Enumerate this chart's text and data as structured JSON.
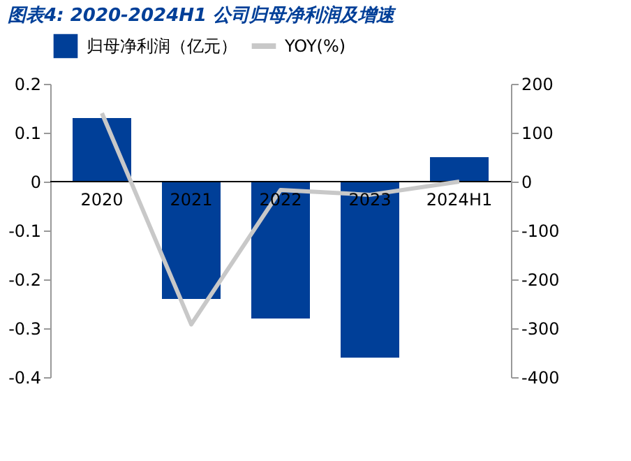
{
  "chart_data": {
    "type": "bar",
    "title": "图表4:  2020-2024H1 公司归母净利润及增速",
    "categories": [
      "2020",
      "2021",
      "2022",
      "2023",
      "2024H1"
    ],
    "series": [
      {
        "name": "归母净利润（亿元）",
        "color": "#003f98",
        "values": [
          0.13,
          -0.24,
          -0.28,
          -0.36,
          0.05
        ]
      },
      {
        "name": "YOY(%)",
        "type": "line",
        "axis": "y2",
        "color": "#c8c8c8",
        "values": [
          140,
          -292,
          -17,
          -27,
          0
        ]
      }
    ],
    "ylim": [
      -0.4,
      0.2
    ],
    "yticks": [
      -0.4,
      -0.3,
      -0.2,
      -0.1,
      0,
      0.1,
      0.2
    ],
    "y2lim": [
      -400,
      200
    ],
    "y2ticks": [
      -400,
      -300,
      -200,
      -100,
      0,
      100,
      200
    ],
    "legend": "top",
    "grid": false,
    "marker": "none",
    "line_style": "solid"
  }
}
